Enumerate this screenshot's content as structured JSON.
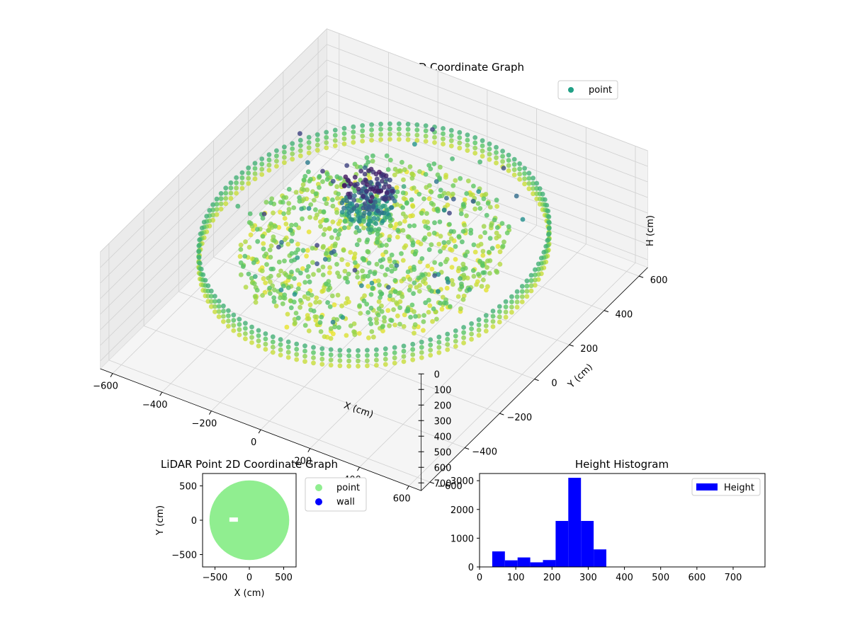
{
  "chart_data": [
    {
      "type": "scatter3d",
      "title": "LiDAR Point 3D Coordinate Graph",
      "xlabel": "X (cm)",
      "ylabel": "Y (cm)",
      "zlabel": "H (cm)",
      "x_ticks": [
        "−600",
        "−400",
        "−200",
        "0",
        "200",
        "400",
        "600"
      ],
      "y_ticks": [
        "−600",
        "−400",
        "−200",
        "0",
        "200",
        "400",
        "600"
      ],
      "z_ticks": [
        "0",
        "100",
        "200",
        "300",
        "400",
        "500",
        "600",
        "700"
      ],
      "xlim": [
        -650,
        650
      ],
      "ylim": [
        -650,
        650
      ],
      "zlim": [
        0,
        750
      ],
      "z_inverted": true,
      "colormap": "viridis",
      "legend": {
        "label": "point",
        "placement": "upper-right",
        "color": "#21a086"
      },
      "series": [
        {
          "name": "point",
          "wall_ring": {
            "radius_cm": 580,
            "height_range_cm": [
              230,
              330
            ]
          },
          "floor_cluster": {
            "radius_cm": 450,
            "height_range_cm": [
              250,
              350
            ]
          },
          "center_column": {
            "x_cm": -80,
            "y_cm": 80,
            "height_range_cm": [
              20,
              260
            ]
          }
        }
      ],
      "grid": true
    },
    {
      "type": "scatter",
      "title": "LiDAR Point 2D Coordinate Graph",
      "xlabel": "X (cm)",
      "ylabel": "Y (cm)",
      "x_ticks": [
        "−500",
        "0",
        "500"
      ],
      "y_ticks": [
        "500",
        "0",
        "−500"
      ],
      "xlim": [
        -680,
        680
      ],
      "ylim": [
        -680,
        680
      ],
      "series": [
        {
          "name": "point",
          "color": "#90ee90",
          "shape": "disk",
          "center": [
            0,
            0
          ],
          "radius_cm": 580
        },
        {
          "name": "wall",
          "color": "#0000ff",
          "values": []
        }
      ],
      "legend": {
        "placement": "outside-right",
        "entries": [
          "point",
          "wall"
        ]
      }
    },
    {
      "type": "bar",
      "title": "Height Histogram",
      "xlabel": "",
      "ylabel": "",
      "x_ticks": [
        "0",
        "100",
        "200",
        "300",
        "400",
        "500",
        "600",
        "700"
      ],
      "y_ticks": [
        "0",
        "1000",
        "2000",
        "3000"
      ],
      "xlim": [
        0,
        788
      ],
      "ylim": [
        0,
        3250
      ],
      "bin_edges": [
        35,
        70,
        105,
        140,
        175,
        210,
        245,
        280,
        315,
        350
      ],
      "series": [
        {
          "name": "Height",
          "color": "#0000ff",
          "values": [
            540,
            230,
            330,
            160,
            240,
            1600,
            3100,
            1600,
            610
          ]
        }
      ],
      "legend": {
        "placement": "upper-right",
        "entries": [
          "Height"
        ]
      }
    }
  ]
}
